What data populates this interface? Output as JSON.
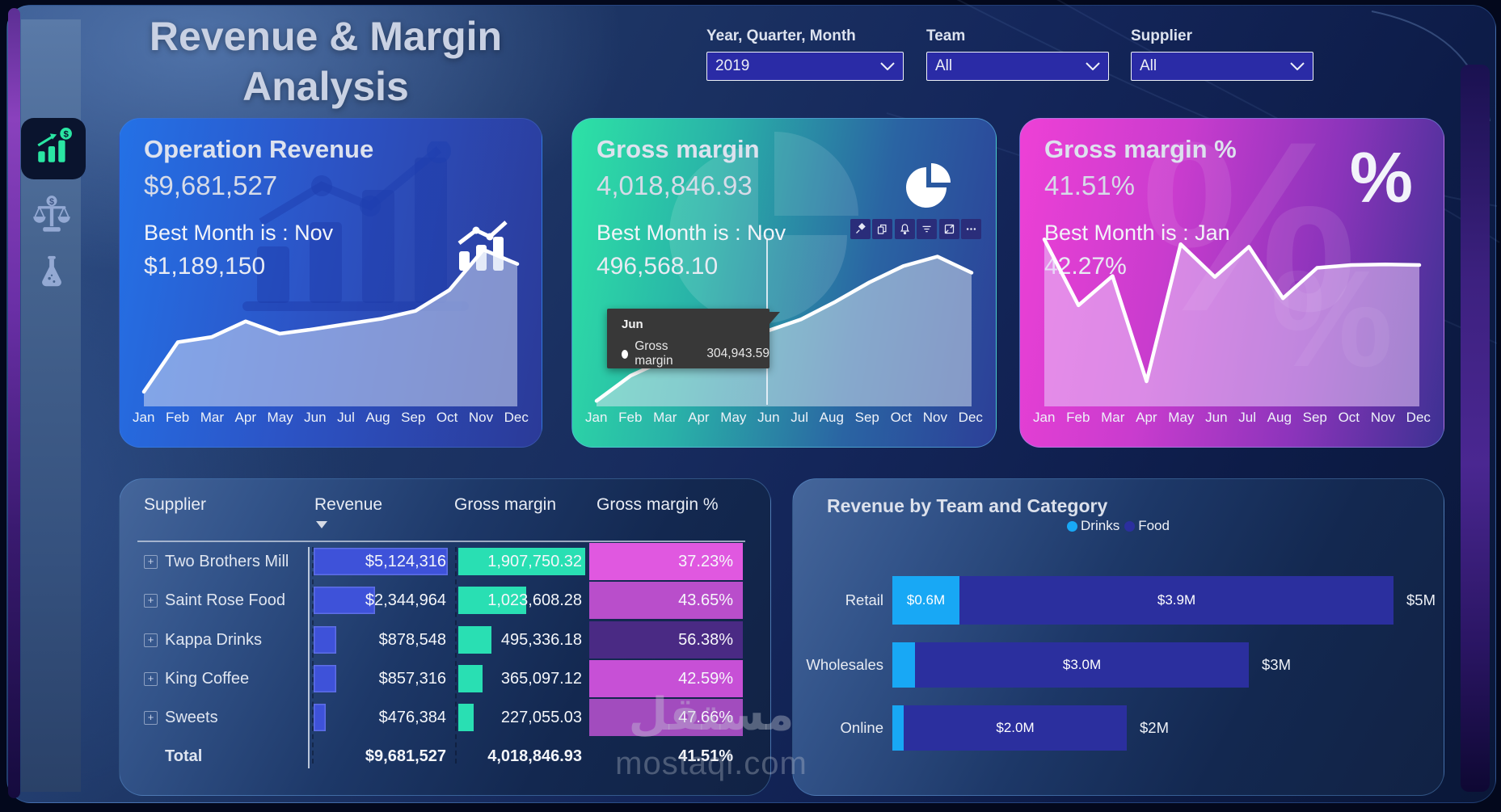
{
  "title": {
    "line1": "Revenue & Margin",
    "line2": "Analysis"
  },
  "filters": [
    {
      "label": "Year, Quarter, Month",
      "value": "2019"
    },
    {
      "label": "Team",
      "value": "All"
    },
    {
      "label": "Supplier",
      "value": "All"
    }
  ],
  "months": [
    "Jan",
    "Feb",
    "Mar",
    "Apr",
    "May",
    "Jun",
    "Jul",
    "Aug",
    "Sep",
    "Oct",
    "Nov",
    "Dec"
  ],
  "kpi_cards": [
    {
      "title": "Operation Revenue",
      "value": "$9,681,527",
      "best_month_label": "Best Month is : Nov",
      "best_month_value": "$1,189,150"
    },
    {
      "title": "Gross margin",
      "value": "4,018,846.93",
      "best_month_label": "Best Month is : Nov",
      "best_month_value": "496,568.10",
      "tooltip": {
        "title": "Jun",
        "series": "Gross margin",
        "value": "304,943.59"
      },
      "toolbar_icons": [
        "pin-icon",
        "copy-icon",
        "alert-icon",
        "filter-icon",
        "focus-mode-icon",
        "more-options-icon"
      ]
    },
    {
      "title": "Gross margin %",
      "value": "41.51%",
      "best_month_label": "Best Month is : Jan",
      "best_month_value": "42.27%"
    }
  ],
  "sidebar": {
    "items": [
      "growth-chart",
      "balance-scale",
      "flask"
    ],
    "accent": "#2ae6a3"
  },
  "table": {
    "columns": [
      "Supplier",
      "Revenue",
      "Gross margin",
      "Gross margin %"
    ],
    "sorted_by": "Revenue",
    "rows": [
      {
        "supplier": "Two Brothers Mill",
        "revenue": "$5,124,316",
        "revenue_num": 5124316,
        "gross_margin": "1,907,750.32",
        "gross_margin_num": 1907750.32,
        "gross_margin_pct": "37.23%",
        "pct_color": "#e058e0"
      },
      {
        "supplier": "Saint Rose Food",
        "revenue": "$2,344,964",
        "revenue_num": 2344964,
        "gross_margin": "1,023,608.28",
        "gross_margin_num": 1023608.28,
        "gross_margin_pct": "43.65%",
        "pct_color": "#b94ecb"
      },
      {
        "supplier": "Kappa Drinks",
        "revenue": "$878,548",
        "revenue_num": 878548,
        "gross_margin": "495,336.18",
        "gross_margin_num": 495336.18,
        "gross_margin_pct": "56.38%",
        "pct_color": "#4a2a84"
      },
      {
        "supplier": "King Coffee",
        "revenue": "$857,316",
        "revenue_num": 857316,
        "gross_margin": "365,097.12",
        "gross_margin_num": 365097.12,
        "gross_margin_pct": "42.59%",
        "pct_color": "#c750d6"
      },
      {
        "supplier": "Sweets",
        "revenue": "$476,384",
        "revenue_num": 476384,
        "gross_margin": "227,055.03",
        "gross_margin_num": 227055.03,
        "gross_margin_pct": "47.66%",
        "pct_color": "#a24cbe"
      }
    ],
    "total": {
      "label": "Total",
      "revenue": "$9,681,527",
      "gross_margin": "4,018,846.93",
      "gross_margin_pct": "41.51%"
    }
  },
  "team_chart": {
    "title": "Revenue by Team and Category",
    "legend": [
      {
        "name": "Drinks",
        "color": "#18a8f5"
      },
      {
        "name": "Food",
        "color": "#2b2f9e"
      }
    ],
    "rows": [
      {
        "team": "Retail",
        "drinks_label": "$0.6M",
        "drinks_value": 0.6,
        "food_label": "$3.9M",
        "food_value": 3.9,
        "total_label": "$5M"
      },
      {
        "team": "Wholesales",
        "drinks_label": "",
        "drinks_value": 0.2,
        "food_label": "$3.0M",
        "food_value": 3.0,
        "total_label": "$3M"
      },
      {
        "team": "Online",
        "drinks_label": "",
        "drinks_value": 0.1,
        "food_label": "$2.0M",
        "food_value": 2.0,
        "total_label": "$2M"
      }
    ]
  },
  "watermark": {
    "arabic": "مستقل",
    "domain": "mostaql.com"
  },
  "chart_data": [
    {
      "type": "area",
      "title": "Operation Revenue by month",
      "x": [
        "Jan",
        "Feb",
        "Mar",
        "Apr",
        "May",
        "Jun",
        "Jul",
        "Aug",
        "Sep",
        "Oct",
        "Nov",
        "Dec"
      ],
      "values": [
        100000,
        480000,
        520000,
        640000,
        545000,
        580000,
        620000,
        660000,
        720000,
        880000,
        1189150,
        1080000
      ],
      "ylim": [
        0,
        1400000
      ],
      "grid": false,
      "legend": "none",
      "note": "Sparkline in Operation Revenue card; only Nov labeled ($1,189,150 best month), other points estimated from line heights"
    },
    {
      "type": "area",
      "title": "Gross margin by month",
      "x": [
        "Jan",
        "Feb",
        "Mar",
        "Apr",
        "May",
        "Jun",
        "Jul",
        "Aug",
        "Sep",
        "Oct",
        "Nov",
        "Dec"
      ],
      "values": [
        125000,
        190000,
        230000,
        260000,
        285000,
        304943.59,
        335000,
        380000,
        430000,
        472000,
        496568.1,
        455000
      ],
      "ylim": [
        115000,
        585000
      ],
      "grid": false,
      "legend": "none",
      "note": "Sparkline in Gross margin card; Jun labeled by tooltip 304,943.59; Nov best 496,568.10; Feb-May hidden behind tooltip, estimated"
    },
    {
      "type": "line",
      "title": "Gross margin % by month",
      "x": [
        "Jan",
        "Feb",
        "Mar",
        "Apr",
        "May",
        "Jun",
        "Jul",
        "Aug",
        "Sep",
        "Oct",
        "Nov",
        "Dec"
      ],
      "values": [
        42.27,
        39.45,
        40.7,
        36.2,
        42.06,
        40.66,
        41.95,
        39.75,
        41.05,
        41.17,
        41.2,
        41.17
      ],
      "ylim": [
        35.2,
        43.0
      ],
      "grid": false,
      "legend": "none",
      "note": "Sparkline in Gross margin % card; Jan labeled 42.27% best month, other points estimated"
    },
    {
      "type": "bar",
      "orientation": "horizontal",
      "stacked": true,
      "title": "Revenue by Team and Category",
      "categories": [
        "Retail",
        "Wholesales",
        "Online"
      ],
      "series": [
        {
          "name": "Drinks",
          "values": [
            0.6,
            0.2,
            0.1
          ],
          "color": "#18a8f5"
        },
        {
          "name": "Food",
          "values": [
            3.9,
            3.0,
            2.0
          ],
          "color": "#2b2f9e"
        }
      ],
      "totals": [
        "$5M",
        "$3M",
        "$2M"
      ],
      "unit": "M USD",
      "legend": "top-center",
      "grid": false
    },
    {
      "type": "table",
      "title": "Supplier table",
      "columns": [
        "Supplier",
        "Revenue",
        "Gross margin",
        "Gross margin %"
      ],
      "rows": [
        [
          "Two Brothers Mill",
          5124316,
          1907750.32,
          "37.23%"
        ],
        [
          "Saint Rose Food",
          2344964,
          1023608.28,
          "43.65%"
        ],
        [
          "Kappa Drinks",
          878548,
          495336.18,
          "56.38%"
        ],
        [
          "King Coffee",
          857316,
          365097.12,
          "42.59%"
        ],
        [
          "Sweets",
          476384,
          227055.03,
          "47.66%"
        ],
        [
          "Total",
          9681527,
          4018846.93,
          "41.51%"
        ]
      ]
    }
  ]
}
